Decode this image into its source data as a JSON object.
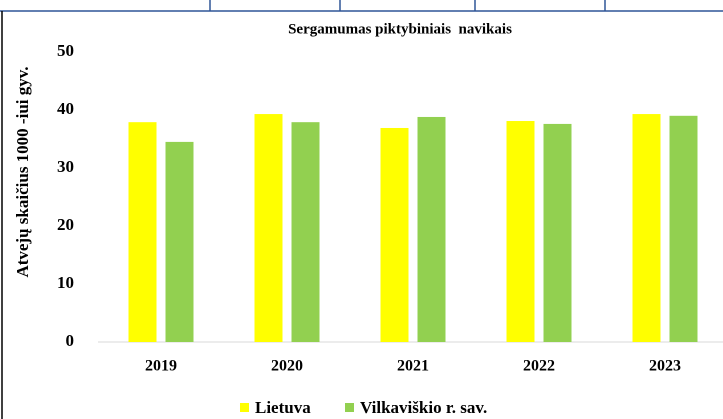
{
  "chart_data": {
    "type": "bar",
    "title": "Sergamumas piktybiniais  navikais",
    "y_label": "Atvejų skaičius 1000 -iui gyv.",
    "categories": [
      "2019",
      "2020",
      "2021",
      "2022",
      "2023"
    ],
    "series": [
      {
        "name": "Lietuva",
        "color": "#ffff00",
        "values": [
          37.9,
          39.3,
          36.9,
          38.1,
          39.3
        ]
      },
      {
        "name": "Vilkaviškio r. sav.",
        "color": "#92d050",
        "values": [
          34.5,
          37.9,
          38.8,
          37.6,
          39.0
        ]
      }
    ],
    "ylim": [
      0,
      50
    ],
    "yticks": [
      0,
      10,
      20,
      30,
      40,
      50
    ],
    "grid": false
  }
}
